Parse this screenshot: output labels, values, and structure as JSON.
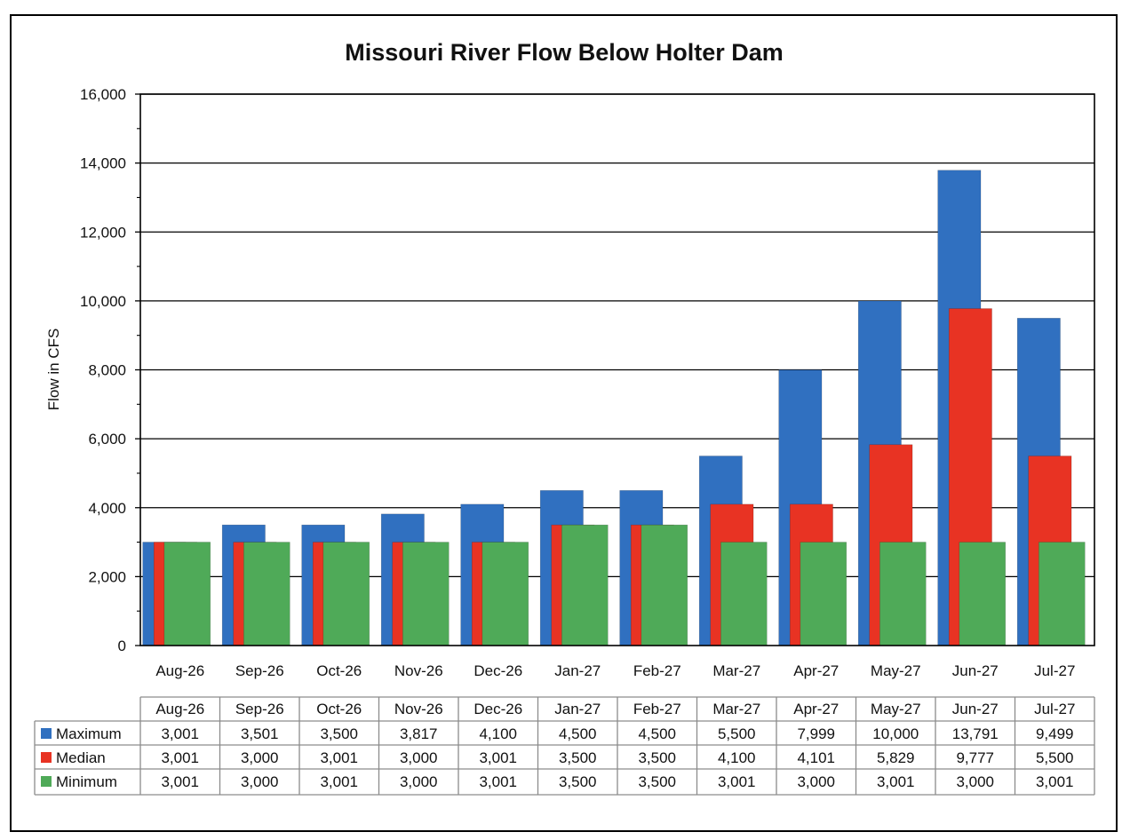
{
  "chart_data": {
    "type": "bar",
    "title": "Missouri River Flow Below Holter Dam",
    "xlabel": "",
    "ylabel": "Flow in CFS",
    "ylim": [
      0,
      16000
    ],
    "yticks": [
      "0",
      "2,000",
      "4,000",
      "6,000",
      "8,000",
      "10,000",
      "12,000",
      "14,000",
      "16,000"
    ],
    "grid": true,
    "categories": [
      "Aug-26",
      "Sep-26",
      "Oct-26",
      "Nov-26",
      "Dec-26",
      "Jan-27",
      "Feb-27",
      "Mar-27",
      "Apr-27",
      "May-27",
      "Jun-27",
      "Jul-27"
    ],
    "series": [
      {
        "name": "Maximum",
        "color": "#3070c0",
        "values": [
          3001,
          3501,
          3500,
          3817,
          4100,
          4500,
          4500,
          5500,
          7999,
          10000,
          13791,
          9499
        ],
        "labels": [
          "3,001",
          "3,501",
          "3,500",
          "3,817",
          "4,100",
          "4,500",
          "4,500",
          "5,500",
          "7,999",
          "10,000",
          "13,791",
          "9,499"
        ]
      },
      {
        "name": "Median",
        "color": "#e83323",
        "values": [
          3001,
          3000,
          3001,
          3000,
          3001,
          3500,
          3500,
          4100,
          4101,
          5829,
          9777,
          5500
        ],
        "labels": [
          "3,001",
          "3,000",
          "3,001",
          "3,000",
          "3,001",
          "3,500",
          "3,500",
          "4,100",
          "4,101",
          "5,829",
          "9,777",
          "5,500"
        ]
      },
      {
        "name": "Minimum",
        "color": "#4faa58",
        "values": [
          3001,
          3000,
          3001,
          3000,
          3001,
          3500,
          3500,
          3001,
          3000,
          3001,
          3000,
          3001
        ],
        "labels": [
          "3,001",
          "3,000",
          "3,001",
          "3,000",
          "3,001",
          "3,500",
          "3,500",
          "3,001",
          "3,000",
          "3,001",
          "3,000",
          "3,001"
        ]
      }
    ],
    "legend": "data-table-below"
  }
}
